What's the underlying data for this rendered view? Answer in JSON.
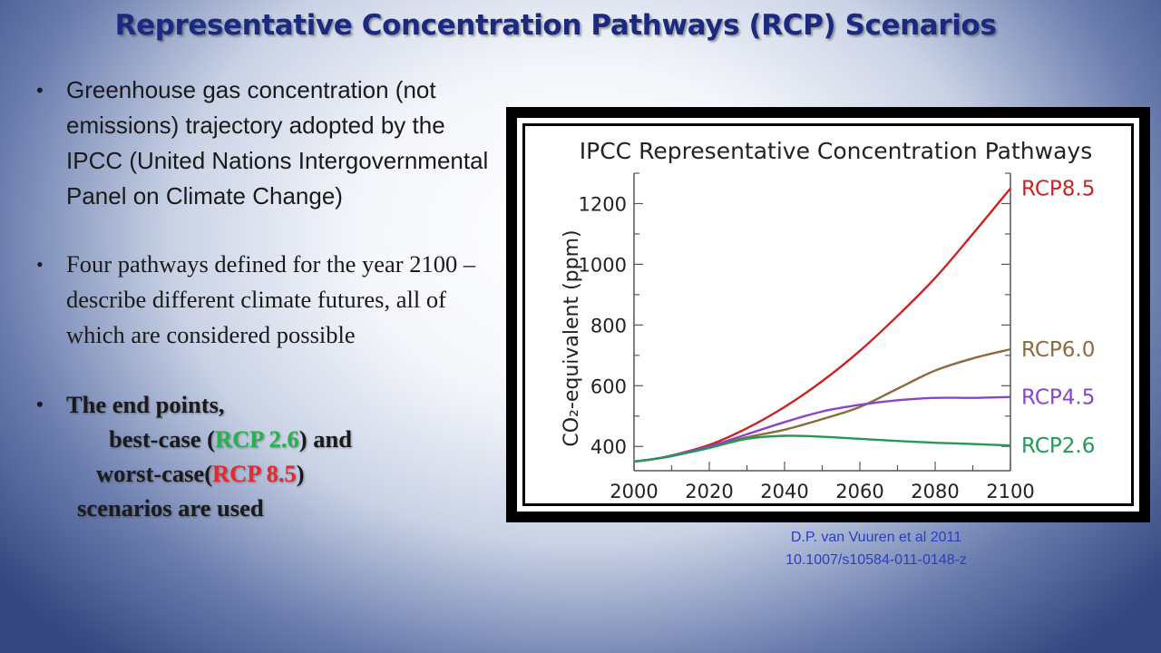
{
  "slide": {
    "title": "Representative Concentration Pathways (RCP) Scenarios",
    "bullets": [
      {
        "text": "Greenhouse gas concentration (not emissions) trajectory adopted by the IPCC (United Nations Intergovernmental Panel on Climate Change)"
      },
      {
        "text": "Four pathways defined for the year 2100 – describe different climate futures, all of which are considered possible"
      }
    ],
    "bullet3": {
      "line1": "The end points,",
      "line2_a": "best-case (",
      "line2_b": "RCP 2.6",
      "line2_c": ") and",
      "line3_a": "worst-case(",
      "line3_b": "RCP 8.5",
      "line3_c": ")",
      "line4": "scenarios are used"
    },
    "bullet_glyph": "•",
    "citation_line1": "D.P. van Vuuren et al 2011",
    "citation_line2": "10.1007/s10584-011-0148-z",
    "colors": {
      "title": "#1b2a80",
      "best_case": "#27b34b",
      "worst_case": "#e8282b",
      "citation": "#2a3fbf"
    }
  },
  "chart_data": {
    "type": "line",
    "title": "IPCC Representative Concentration Pathways",
    "ylabel": "CO₂-equivalent (ppm)",
    "xlabel": "",
    "xlim": [
      2000,
      2100
    ],
    "ylim": [
      320,
      1300
    ],
    "xticks": [
      2000,
      2020,
      2040,
      2060,
      2080,
      2100
    ],
    "yticks": [
      400,
      600,
      800,
      1000,
      1200
    ],
    "grid": false,
    "legend": "labels at line ends (right)",
    "series": [
      {
        "name": "RCP8.5",
        "color": "#cc2222",
        "x": [
          2000,
          2005,
          2010,
          2020,
          2030,
          2040,
          2050,
          2060,
          2070,
          2080,
          2090,
          2100
        ],
        "y": [
          350,
          358,
          370,
          405,
          460,
          530,
          615,
          715,
          830,
          955,
          1100,
          1250
        ]
      },
      {
        "name": "RCP6.0",
        "color": "#8b6b3c",
        "x": [
          2000,
          2005,
          2010,
          2020,
          2030,
          2040,
          2050,
          2060,
          2070,
          2080,
          2090,
          2100
        ],
        "y": [
          350,
          358,
          368,
          398,
          430,
          455,
          490,
          530,
          590,
          650,
          690,
          720
        ]
      },
      {
        "name": "RCP4.5",
        "color": "#8a44c8",
        "x": [
          2000,
          2005,
          2010,
          2020,
          2030,
          2040,
          2050,
          2060,
          2070,
          2080,
          2090,
          2100
        ],
        "y": [
          350,
          358,
          370,
          400,
          440,
          480,
          515,
          537,
          552,
          560,
          560,
          563
        ]
      },
      {
        "name": "RCP2.6",
        "color": "#229955",
        "x": [
          2000,
          2005,
          2010,
          2020,
          2030,
          2040,
          2050,
          2060,
          2070,
          2080,
          2090,
          2100
        ],
        "y": [
          350,
          358,
          368,
          395,
          425,
          435,
          432,
          425,
          418,
          412,
          408,
          403
        ]
      }
    ]
  }
}
